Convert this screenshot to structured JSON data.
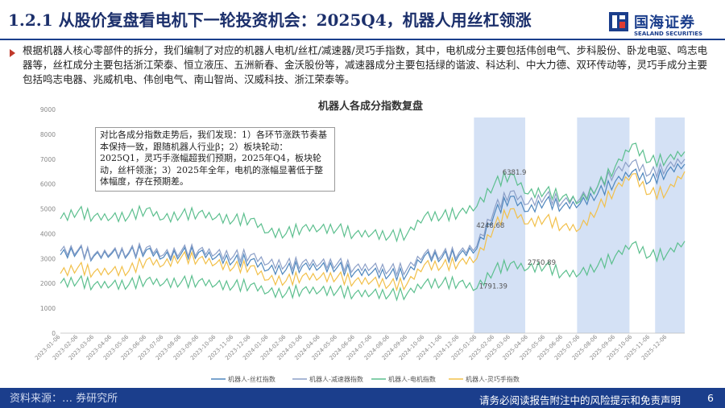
{
  "header": {
    "title": "1.2.1 从股价复盘看电机下一轮投资机会：2025Q4，机器人用丝杠领涨",
    "logo_cn": "国海证券",
    "logo_en": "SEALAND SECURITIES"
  },
  "intro": {
    "text": "根据机器人核心零部件的拆分，我们编制了对应的机器人电机/丝杠/减速器/灵巧手指数，其中，电机成分主要包括伟创电气、步科股份、卧龙电驱、鸣志电器等，丝杠成分主要包括浙江荣泰、恒立液压、五洲新春、金沃股份等，减速器成分主要包括绿的谐波、科达利、中大力德、双环传动等，灵巧手成分主要包括鸣志电器、兆威机电、伟创电气、南山智尚、汉威科技、浙江荣泰等。"
  },
  "footer": {
    "left_text": "资料来源：… 券研究所",
    "right_text": "请务必阅读报告附注中的风险提示和免责声明",
    "page_number": "6"
  },
  "colors": {
    "brand": "#1b3e8c",
    "screw": "#4e86bd",
    "reducer": "#8c9fc7",
    "motor": "#5cbf8e",
    "hand": "#f2c04a",
    "highlight": "#c9daf3"
  },
  "chart_data": {
    "type": "line",
    "title": "机器人各成分指数复盘",
    "ylim": [
      0,
      9000
    ],
    "y_ticks": [
      0,
      1000,
      2000,
      3000,
      4000,
      5000,
      6000,
      7000,
      8000,
      9000
    ],
    "x_range": [
      "2023-01-06",
      "2026-01-06"
    ],
    "x_ticks": [
      "2023-01-06",
      "2023-02-06",
      "2023-03-06",
      "2023-04-06",
      "2023-05-06",
      "2023-06-06",
      "2023-07-06",
      "2023-08-06",
      "2023-09-06",
      "2023-10-06",
      "2023-11-06",
      "2023-12-06",
      "2024-01-06",
      "2024-02-06",
      "2024-03-06",
      "2024-04-06",
      "2024-05-06",
      "2024-06-06",
      "2024-07-06",
      "2024-08-06",
      "2024-09-06",
      "2024-10-06",
      "2024-11-06",
      "2024-12-06",
      "2025-01-06",
      "2025-02-06",
      "2025-03-06",
      "2025-04-06",
      "2025-05-06",
      "2025-06-06",
      "2025-07-06",
      "2025-08-06",
      "2025-09-06",
      "2025-10-06",
      "2025-11-06",
      "2025-12-06"
    ],
    "highlight_ranges": [
      [
        "2025-01-01",
        "2025-04-01"
      ],
      [
        "2025-07-01",
        "2025-10-01"
      ],
      [
        "2025-11-15",
        "2026-01-06"
      ]
    ],
    "annotation_box": "对比各成分指数走势后，我们发现：1）各环节涨跌节奏基本保持一致，跟随机器人行业β；2）板块轮动：2025Q1，灵巧手涨幅超我们预期，2025年Q4，板块轮动，丝杆领涨；3）2025年全年，电机的涨幅显著低于整体幅度，存在预期差。",
    "point_labels": [
      {
        "text": "6381.9",
        "date": "2025-02-20",
        "value": 6381.9
      },
      {
        "text": "4248.68",
        "date": "2025-01-05",
        "value": 4248.68
      },
      {
        "text": "2750.89",
        "date": "2025-04-05",
        "value": 2750.89
      },
      {
        "text": "1791.39",
        "date": "2025-01-10",
        "value": 1791.39
      }
    ],
    "series": [
      {
        "name": "机器人-丝杠指数",
        "color": "#4e86bd",
        "dates": [
          "2023-01-06",
          "2023-02-06",
          "2023-03-06",
          "2023-04-06",
          "2023-05-06",
          "2023-06-06",
          "2023-07-06",
          "2023-08-06",
          "2023-09-06",
          "2023-10-06",
          "2023-11-06",
          "2023-12-06",
          "2024-01-06",
          "2024-02-06",
          "2024-03-06",
          "2024-04-06",
          "2024-05-06",
          "2024-06-06",
          "2024-07-06",
          "2024-08-06",
          "2024-09-06",
          "2024-10-06",
          "2024-11-06",
          "2024-12-06",
          "2025-01-06",
          "2025-02-06",
          "2025-03-06",
          "2025-04-06",
          "2025-05-06",
          "2025-06-06",
          "2025-07-06",
          "2025-08-06",
          "2025-09-06",
          "2025-10-06",
          "2025-11-06",
          "2025-12-06",
          "2026-01-06"
        ],
        "values": [
          3150,
          3300,
          3100,
          3200,
          3200,
          3350,
          3050,
          3200,
          3250,
          3050,
          2900,
          2950,
          2550,
          2550,
          2700,
          2650,
          2650,
          2450,
          2450,
          2350,
          2400,
          3100,
          3050,
          3150,
          3400,
          4800,
          5500,
          4900,
          5300,
          5100,
          5200,
          5600,
          6100,
          6500,
          6100,
          6500,
          6800
        ]
      },
      {
        "name": "机器人-减速器指数",
        "color": "#8c9fc7",
        "dates": [
          "2023-01-06",
          "2023-02-06",
          "2023-03-06",
          "2023-04-06",
          "2023-05-06",
          "2023-06-06",
          "2023-07-06",
          "2023-08-06",
          "2023-09-06",
          "2023-10-06",
          "2023-11-06",
          "2023-12-06",
          "2024-01-06",
          "2024-02-06",
          "2024-03-06",
          "2024-04-06",
          "2024-05-06",
          "2024-06-06",
          "2024-07-06",
          "2024-08-06",
          "2024-09-06",
          "2024-10-06",
          "2024-11-06",
          "2024-12-06",
          "2025-01-06",
          "2025-02-06",
          "2025-03-06",
          "2025-04-06",
          "2025-05-06",
          "2025-06-06",
          "2025-07-06",
          "2025-08-06",
          "2025-09-06",
          "2025-10-06",
          "2025-11-06",
          "2025-12-06",
          "2026-01-06"
        ],
        "values": [
          3300,
          3350,
          3150,
          3250,
          3250,
          3450,
          3150,
          3300,
          3350,
          3200,
          3100,
          3150,
          2800,
          2750,
          2850,
          2800,
          2800,
          2650,
          2650,
          2550,
          2600,
          3200,
          3150,
          3250,
          3500,
          5000,
          5700,
          5200,
          5500,
          5300,
          5400,
          5900,
          6500,
          6900,
          6400,
          6700,
          7000
        ]
      },
      {
        "name": "机器人-电机指数",
        "color": "#5cbf8e",
        "dates": [
          "2023-01-06",
          "2023-02-06",
          "2023-03-06",
          "2023-04-06",
          "2023-05-06",
          "2023-06-06",
          "2023-07-06",
          "2023-08-06",
          "2023-09-06",
          "2023-10-06",
          "2023-11-06",
          "2023-12-06",
          "2024-01-06",
          "2024-02-06",
          "2024-03-06",
          "2024-04-06",
          "2024-05-06",
          "2024-06-06",
          "2024-07-06",
          "2024-08-06",
          "2024-09-06",
          "2024-10-06",
          "2024-11-06",
          "2024-12-06",
          "2025-01-06",
          "2025-02-06",
          "2025-03-06",
          "2025-04-06",
          "2025-05-06",
          "2025-06-06",
          "2025-07-06",
          "2025-08-06",
          "2025-09-06",
          "2025-10-06",
          "2025-11-06",
          "2025-12-06",
          "2026-01-06"
        ],
        "values": [
          4600,
          4900,
          4700,
          4650,
          4700,
          5000,
          4600,
          4750,
          4850,
          4650,
          4550,
          4600,
          4050,
          4000,
          4250,
          4200,
          4200,
          4000,
          4000,
          3900,
          4000,
          4700,
          4700,
          4850,
          5100,
          6000,
          6400,
          5600,
          5700,
          5500,
          5300,
          5900,
          6700,
          7600,
          6900,
          7000,
          7300
        ]
      },
      {
        "name": "机器人-灵巧手指数",
        "color": "#f2c04a",
        "dates": [
          "2023-01-06",
          "2023-02-06",
          "2023-03-06",
          "2023-04-06",
          "2023-05-06",
          "2023-06-06",
          "2023-07-06",
          "2023-08-06",
          "2023-09-06",
          "2023-10-06",
          "2023-11-06",
          "2023-12-06",
          "2024-01-06",
          "2024-02-06",
          "2024-03-06",
          "2024-04-06",
          "2024-05-06",
          "2024-06-06",
          "2024-07-06",
          "2024-08-06",
          "2024-09-06",
          "2024-10-06",
          "2024-11-06",
          "2024-12-06",
          "2025-01-06",
          "2025-02-06",
          "2025-03-06",
          "2025-04-06",
          "2025-05-06",
          "2025-06-06",
          "2025-07-06",
          "2025-08-06",
          "2025-09-06",
          "2025-10-06",
          "2025-11-06",
          "2025-12-06",
          "2026-01-06"
        ],
        "values": [
          2400,
          2650,
          2450,
          2500,
          2500,
          2950,
          2750,
          3050,
          3000,
          2800,
          2650,
          2700,
          2150,
          2100,
          2300,
          2250,
          2250,
          2100,
          2100,
          1950,
          2000,
          2750,
          2700,
          2850,
          3000,
          4300,
          5000,
          4400,
          4600,
          4300,
          4200,
          5000,
          5800,
          6400,
          5600,
          5700,
          6500
        ]
      },
      {
        "name": "",
        "color": "#5cbf8e",
        "dates": [
          "2023-01-06",
          "2023-02-06",
          "2023-03-06",
          "2023-04-06",
          "2023-05-06",
          "2023-06-06",
          "2023-07-06",
          "2023-08-06",
          "2023-09-06",
          "2023-10-06",
          "2023-11-06",
          "2023-12-06",
          "2024-01-06",
          "2024-02-06",
          "2024-03-06",
          "2024-04-06",
          "2024-05-06",
          "2024-06-06",
          "2024-07-06",
          "2024-08-06",
          "2024-09-06",
          "2024-10-06",
          "2024-11-06",
          "2024-12-06",
          "2025-01-06",
          "2025-02-06",
          "2025-03-06",
          "2025-04-06",
          "2025-05-06",
          "2025-06-06",
          "2025-07-06",
          "2025-08-06",
          "2025-09-06",
          "2025-10-06",
          "2025-11-06",
          "2025-12-06",
          "2026-01-06"
        ],
        "values": [
          2000,
          2100,
          1950,
          1950,
          1950,
          2150,
          2000,
          2050,
          2100,
          1950,
          1900,
          1950,
          1650,
          1600,
          1750,
          1700,
          1700,
          1600,
          1600,
          1550,
          1600,
          2000,
          2000,
          2050,
          1800,
          2550,
          2800,
          2600,
          2700,
          2400,
          2400,
          2700,
          3100,
          3600,
          3100,
          3200,
          3700
        ]
      }
    ],
    "legend_position": "bottom",
    "legend_items": [
      "机器人-丝杠指数",
      "机器人-减速器指数",
      "机器人-电机指数",
      "机器人-灵巧手指数"
    ]
  }
}
